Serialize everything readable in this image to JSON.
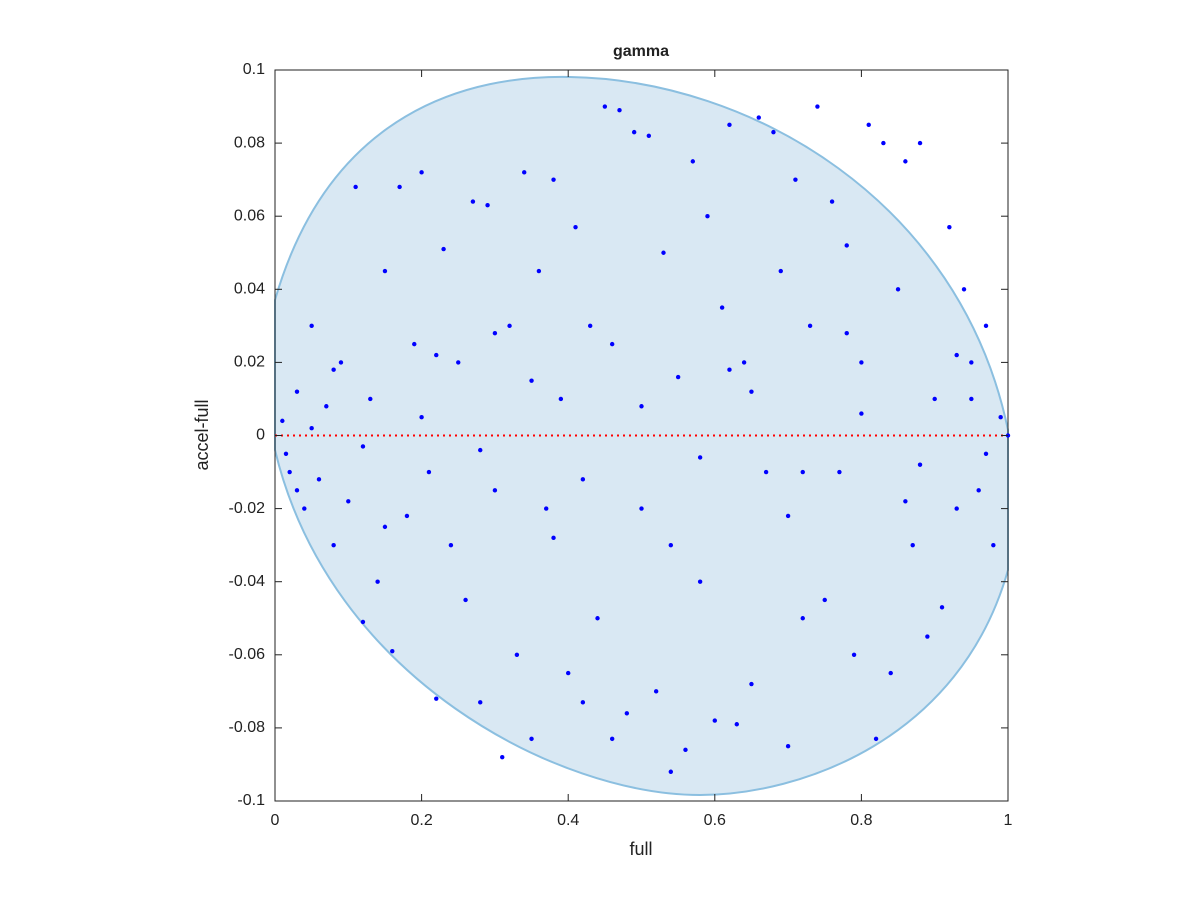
{
  "chart_data": {
    "type": "scatter",
    "title": "gamma",
    "xlabel": "full",
    "ylabel": "accel-full",
    "x": [
      0.01,
      0.02,
      0.03,
      0.015,
      0.04,
      0.05,
      0.06,
      0.07,
      0.08,
      0.09,
      0.1,
      0.11,
      0.12,
      0.13,
      0.14,
      0.15,
      0.16,
      0.17,
      0.18,
      0.19,
      0.2,
      0.21,
      0.22,
      0.23,
      0.24,
      0.25,
      0.26,
      0.27,
      0.28,
      0.29,
      0.3,
      0.31,
      0.32,
      0.33,
      0.34,
      0.35,
      0.36,
      0.37,
      0.38,
      0.39,
      0.4,
      0.41,
      0.42,
      0.43,
      0.44,
      0.45,
      0.46,
      0.47,
      0.48,
      0.49,
      0.5,
      0.51,
      0.52,
      0.53,
      0.54,
      0.55,
      0.56,
      0.57,
      0.58,
      0.59,
      0.6,
      0.61,
      0.62,
      0.63,
      0.64,
      0.65,
      0.66,
      0.67,
      0.68,
      0.69,
      0.7,
      0.71,
      0.72,
      0.73,
      0.74,
      0.75,
      0.76,
      0.77,
      0.78,
      0.79,
      0.8,
      0.81,
      0.82,
      0.83,
      0.84,
      0.85,
      0.86,
      0.87,
      0.88,
      0.89,
      0.9,
      0.91,
      0.92,
      0.93,
      0.94,
      0.95,
      0.96,
      0.97,
      0.98,
      0.99,
      1,
      0.05,
      0.12,
      0.2,
      0.28,
      0.35,
      0.42,
      0.5,
      0.58,
      0.65,
      0.72,
      0.8,
      0.88,
      0.95,
      0.03,
      0.08,
      0.15,
      0.22,
      0.3,
      0.38,
      0.46,
      0.54,
      0.62,
      0.7,
      0.78,
      0.86,
      0.93,
      0.97
    ],
    "values": [
      0.004,
      -0.01,
      0.012,
      -0.005,
      -0.02,
      0.03,
      -0.012,
      0.008,
      -0.03,
      0.02,
      -0.018,
      0.068,
      -0.051,
      0.01,
      -0.04,
      0.045,
      -0.059,
      0.068,
      -0.022,
      0.025,
      0.072,
      -0.01,
      -0.072,
      0.051,
      -0.03,
      0.02,
      -0.045,
      0.064,
      -0.073,
      0.063,
      -0.015,
      -0.088,
      0.03,
      -0.06,
      0.072,
      -0.083,
      0.045,
      -0.02,
      0.07,
      0.01,
      -0.065,
      0.057,
      -0.073,
      0.03,
      -0.05,
      0.09,
      -0.083,
      0.089,
      -0.076,
      0.083,
      -0.02,
      0.082,
      -0.07,
      0.05,
      -0.092,
      0.016,
      -0.086,
      0.075,
      -0.04,
      0.06,
      -0.078,
      0.035,
      0.085,
      -0.079,
      0.02,
      -0.068,
      0.087,
      -0.01,
      0.083,
      0.045,
      -0.085,
      0.07,
      -0.05,
      0.03,
      0.09,
      -0.045,
      0.064,
      -0.01,
      0.052,
      -0.06,
      0.02,
      0.085,
      -0.083,
      0.08,
      -0.065,
      0.04,
      0.075,
      -0.03,
      0.08,
      -0.055,
      0.01,
      -0.047,
      0.057,
      -0.02,
      0.04,
      0.02,
      -0.015,
      0.03,
      -0.03,
      0.005,
      0,
      0.002,
      -0.003,
      0.005,
      -0.004,
      0.015,
      -0.012,
      0.008,
      -0.006,
      0.012,
      -0.01,
      0.006,
      -0.008,
      0.01,
      -0.015,
      0.018,
      -0.025,
      0.022,
      0.028,
      -0.028,
      0.025,
      -0.03,
      0.018,
      -0.022,
      0.028,
      -0.018,
      0.022,
      -0.005
    ],
    "color": "#0000ff",
    "reference_line": {
      "y": 0,
      "color": "#ff0000"
    },
    "xlim": [
      0,
      1
    ],
    "xticks": [
      0,
      0.2,
      0.4,
      0.6,
      0.8,
      1
    ],
    "ylim": [
      -0.1,
      0.1
    ],
    "yticks": [
      -0.1,
      -0.08,
      -0.06,
      -0.04,
      -0.02,
      0,
      0.02,
      0.04,
      0.06,
      0.08,
      0.1
    ]
  }
}
